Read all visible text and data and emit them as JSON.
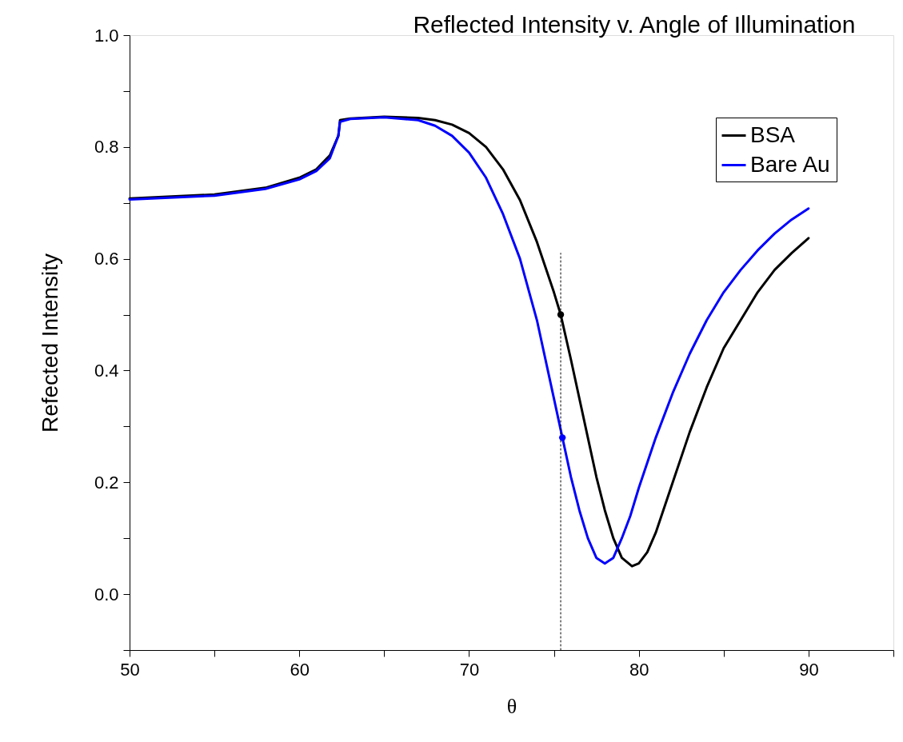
{
  "chart_data": {
    "type": "line",
    "title": "Reflected Intensity v. Angle of Illumination",
    "xlabel": "θ",
    "ylabel": "Refected Intensity",
    "xlim": [
      50,
      95
    ],
    "xticks": [
      50,
      {
        "value": 55,
        "label": null
      },
      60,
      {
        "value": 65,
        "label": null
      },
      70,
      {
        "value": 75,
        "label": null
      },
      80,
      {
        "value": 85,
        "label": null
      },
      90,
      {
        "value": 95,
        "label": null
      }
    ],
    "ylim": [
      -0.1,
      1.0
    ],
    "yticks": [
      {
        "value": -0.1,
        "label": null
      },
      "0.0",
      {
        "value": 0.1,
        "label": null
      },
      0.2,
      {
        "value": 0.3,
        "label": null
      },
      0.4,
      {
        "value": 0.5,
        "label": null
      },
      0.6,
      {
        "value": 0.7,
        "label": null
      },
      0.8,
      {
        "value": 0.9,
        "label": null
      },
      "1.0"
    ],
    "grid": false,
    "legend": "top right",
    "marker": "none",
    "line_style": "solid",
    "series": [
      {
        "name": "BSA",
        "color": "#000000",
        "x": [
          50,
          55,
          58,
          60,
          61,
          61.8,
          62.3,
          62.4,
          63,
          65,
          67,
          68,
          69,
          70,
          71,
          72,
          73,
          74,
          75,
          75.4,
          76,
          77,
          77.5,
          78,
          78.5,
          79,
          79.6,
          80,
          80.5,
          81,
          82,
          83,
          84,
          85,
          86,
          87,
          88,
          89,
          90
        ],
        "values": [
          0.708,
          0.715,
          0.727,
          0.745,
          0.76,
          0.785,
          0.82,
          0.848,
          0.851,
          0.854,
          0.852,
          0.848,
          0.84,
          0.825,
          0.8,
          0.76,
          0.705,
          0.63,
          0.54,
          0.5,
          0.42,
          0.28,
          0.21,
          0.15,
          0.1,
          0.065,
          0.05,
          0.055,
          0.075,
          0.11,
          0.2,
          0.29,
          0.37,
          0.44,
          0.49,
          0.54,
          0.58,
          0.61,
          0.637
        ]
      },
      {
        "name": "Bare Au",
        "color": "#0000ff",
        "x": [
          50,
          55,
          58,
          60,
          61,
          61.8,
          62.3,
          62.4,
          63,
          65,
          67,
          68,
          69,
          70,
          71,
          72,
          73,
          74,
          75,
          75.5,
          76,
          76.5,
          77,
          77.5,
          78,
          78.5,
          79,
          79.5,
          80,
          81,
          82,
          83,
          84,
          85,
          86,
          87,
          88,
          89,
          90
        ],
        "values": [
          0.706,
          0.713,
          0.725,
          0.742,
          0.757,
          0.78,
          0.82,
          0.845,
          0.85,
          0.853,
          0.848,
          0.838,
          0.82,
          0.79,
          0.745,
          0.68,
          0.6,
          0.49,
          0.35,
          0.28,
          0.21,
          0.15,
          0.1,
          0.065,
          0.055,
          0.065,
          0.1,
          0.14,
          0.19,
          0.28,
          0.36,
          0.43,
          0.49,
          0.54,
          0.58,
          0.615,
          0.645,
          0.67,
          0.69
        ]
      },
      {
        "type": "line",
        "color": "#000000",
        "line_style": "dotted",
        "x": [
          75.4,
          75.4
        ],
        "values": [
          -0.1,
          0.61
        ]
      },
      {
        "type": "scatter",
        "marker": "circle",
        "color": "#000000",
        "x": [
          75.4
        ],
        "values": [
          0.5
        ]
      },
      {
        "type": "scatter",
        "marker": "circle",
        "color": "#0000ff",
        "x": [
          75.5
        ],
        "values": [
          0.28
        ]
      }
    ]
  }
}
